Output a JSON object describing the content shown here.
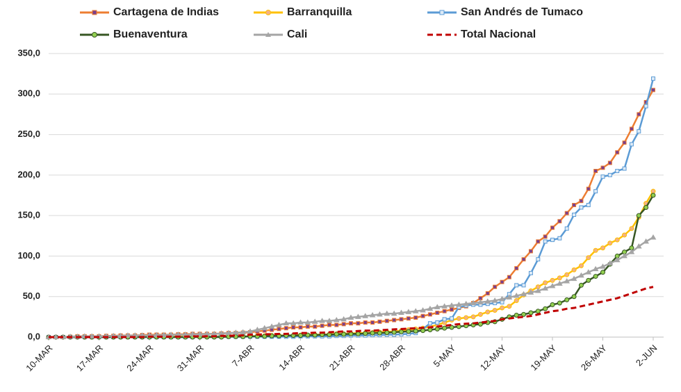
{
  "chart_data": {
    "type": "line",
    "categories": [
      "10-MAR",
      null,
      null,
      null,
      null,
      null,
      null,
      "17-MAR",
      null,
      null,
      null,
      null,
      null,
      null,
      "24-MAR",
      null,
      null,
      null,
      null,
      null,
      null,
      "31-MAR",
      null,
      null,
      null,
      null,
      null,
      null,
      "7-ABR",
      null,
      null,
      null,
      null,
      null,
      null,
      "14-ABR",
      null,
      null,
      null,
      null,
      null,
      null,
      "21-ABR",
      null,
      null,
      null,
      null,
      null,
      null,
      "28-ABR",
      null,
      null,
      null,
      null,
      null,
      null,
      "5-MAY",
      null,
      null,
      null,
      null,
      null,
      null,
      "12-MAY",
      null,
      null,
      null,
      null,
      null,
      null,
      "19-MAY",
      null,
      null,
      null,
      null,
      null,
      null,
      "26-MAY",
      null,
      null,
      null,
      null,
      null,
      null,
      "2-JUN"
    ],
    "series": [
      {
        "name": "Cartagena de Indias",
        "color": "#ed7d31",
        "marker": "square",
        "marker_color": "#7b3f8c",
        "values": [
          0,
          0,
          0,
          0.5,
          1,
          1,
          1,
          1,
          1.5,
          1.5,
          2,
          2,
          2,
          2.5,
          3,
          3,
          3,
          3,
          3.5,
          3.5,
          4,
          4,
          4,
          4,
          4.5,
          5,
          5,
          5.5,
          6,
          7,
          8,
          9,
          10,
          11,
          12,
          12,
          13,
          13,
          14,
          15,
          15,
          16,
          17,
          17,
          18,
          18,
          19,
          20,
          21,
          22,
          23,
          24,
          26,
          28,
          30,
          32,
          34,
          36,
          38,
          42,
          48,
          54,
          62,
          68,
          74,
          85,
          96,
          106,
          118,
          124,
          135,
          143,
          153,
          163,
          168,
          183,
          205,
          209,
          215,
          228,
          240,
          257,
          275,
          290,
          305
        ]
      },
      {
        "name": "Barranquilla",
        "color": "#ffc000",
        "marker": "circle",
        "marker_color": "#f4b183",
        "values": [
          0,
          0,
          0,
          0,
          0,
          0,
          0,
          0,
          0,
          0,
          0,
          0,
          0.5,
          0.5,
          0.5,
          0.5,
          0.5,
          0.5,
          1,
          1,
          1,
          1,
          1,
          1,
          1,
          1,
          1,
          1,
          1,
          1.5,
          1.5,
          2,
          2,
          2,
          2,
          2.5,
          2.5,
          3,
          3,
          3.5,
          4,
          4,
          4.5,
          5,
          5,
          5.5,
          6,
          6.5,
          7,
          8,
          9,
          10,
          11,
          13,
          15,
          18,
          21,
          23,
          24,
          25,
          28,
          31,
          33,
          36,
          38,
          45,
          52,
          57,
          62,
          67,
          70,
          73,
          77,
          83,
          88,
          98,
          107,
          110,
          116,
          120,
          126,
          134,
          148,
          165,
          180
        ]
      },
      {
        "name": "San Andrés de Tumaco",
        "color": "#5b9bd5",
        "marker": "square",
        "marker_color": "#deebf7",
        "values": [
          0,
          0,
          0,
          0,
          0,
          0,
          0,
          0,
          0,
          0,
          0,
          0,
          0,
          0,
          0,
          0,
          0,
          0,
          0,
          0,
          0,
          0.5,
          0.5,
          0.5,
          0.5,
          0.5,
          0.5,
          0.5,
          0.5,
          0.5,
          0.5,
          0.5,
          0.5,
          0.5,
          0.5,
          1,
          1,
          1,
          1,
          1,
          1.5,
          1.5,
          2,
          2,
          2,
          2.5,
          2.5,
          3,
          3,
          3.5,
          4,
          5,
          10,
          17,
          18,
          22,
          23,
          37,
          39,
          40,
          40,
          41,
          42,
          43,
          53,
          64,
          64,
          79,
          96,
          118,
          120,
          122,
          134,
          151,
          160,
          163,
          180,
          198,
          200,
          205,
          208,
          238,
          254,
          285,
          319
        ]
      },
      {
        "name": "Buenaventura",
        "color": "#375623",
        "marker": "circle",
        "marker_color": "#92d050",
        "values": [
          0,
          0,
          0,
          0,
          0,
          0,
          0,
          0,
          0,
          0,
          0,
          0,
          0,
          0,
          0,
          0,
          0,
          0,
          0,
          0,
          0,
          0,
          0,
          0,
          0,
          0.5,
          0.5,
          0.5,
          1,
          1,
          1,
          1.5,
          1.5,
          2,
          2,
          2,
          2.5,
          2.5,
          3,
          3,
          3.5,
          3.5,
          4,
          4,
          4.5,
          5,
          5,
          5.5,
          6,
          6.5,
          7,
          7.5,
          8,
          9,
          10,
          11,
          12,
          13,
          14,
          15,
          16,
          18,
          19,
          22,
          25,
          27,
          28,
          30,
          32,
          35,
          40,
          42,
          46,
          50,
          64,
          70,
          75,
          80,
          90,
          100,
          105,
          110,
          150,
          160,
          175
        ]
      },
      {
        "name": "Cali",
        "color": "#a5a5a5",
        "marker": "triangle",
        "marker_color": "#a5a5a5",
        "values": [
          0,
          0,
          0,
          0.5,
          0.5,
          1,
          1,
          1,
          1,
          1.5,
          1.5,
          2,
          2,
          2,
          2,
          2.5,
          2.5,
          3,
          3,
          3,
          3.5,
          3.5,
          4,
          4,
          4.5,
          5,
          5.5,
          6,
          7,
          9,
          11,
          13,
          15,
          17,
          17,
          18,
          18,
          19,
          20,
          20,
          21,
          22,
          24,
          25,
          26,
          27,
          28,
          29,
          29,
          30,
          31,
          32,
          33,
          35,
          37,
          38,
          39,
          40,
          41,
          42,
          43,
          44,
          45,
          47,
          49,
          51,
          53,
          55,
          57,
          60,
          63,
          66,
          69,
          72,
          76,
          80,
          84,
          87,
          91,
          95,
          100,
          105,
          112,
          118,
          123
        ]
      },
      {
        "name": "Total Nacional",
        "color": "#c00000",
        "marker": null,
        "dash": true,
        "values": [
          0,
          0,
          0,
          0,
          0,
          0,
          0,
          0,
          0,
          0,
          0,
          0,
          0,
          0,
          0.5,
          0.5,
          0.5,
          0.5,
          0.5,
          0.5,
          1,
          1,
          1,
          1,
          1.5,
          1.5,
          2,
          2,
          3,
          3,
          3.5,
          3.5,
          4,
          4,
          4.5,
          5,
          5,
          5.5,
          5.5,
          6,
          6.5,
          7,
          7,
          7.5,
          8,
          8,
          8.5,
          9,
          9.5,
          10,
          10.5,
          11,
          11.5,
          12,
          13,
          14,
          15,
          16,
          16.5,
          17,
          18,
          19,
          20,
          22,
          23,
          24,
          25,
          26,
          28,
          30,
          32,
          33,
          35,
          36,
          38,
          40,
          42,
          44,
          46,
          48,
          51,
          54,
          57,
          60,
          62
        ]
      }
    ],
    "ylim": [
      0,
      350
    ],
    "yticks": [
      {
        "value": 0,
        "label": "0,0"
      },
      {
        "value": 50,
        "label": "50,0"
      },
      {
        "value": 100,
        "label": "100,0"
      },
      {
        "value": 150,
        "label": "150,0"
      },
      {
        "value": 200,
        "label": "200,0"
      },
      {
        "value": 250,
        "label": "250,0"
      },
      {
        "value": 300,
        "label": "300,0"
      },
      {
        "value": 350,
        "label": "350,0"
      }
    ],
    "grid": true
  }
}
